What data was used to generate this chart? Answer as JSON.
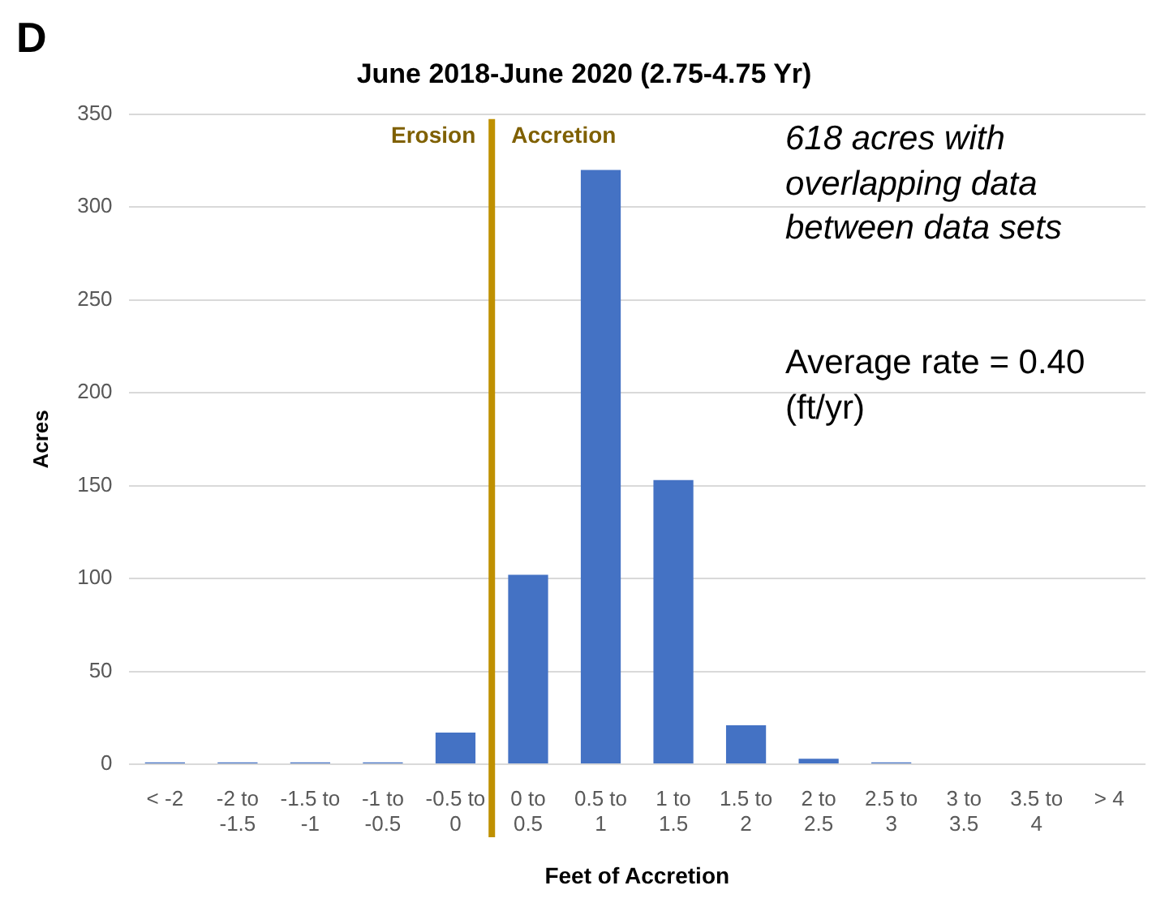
{
  "chart_data": {
    "type": "bar",
    "title": "June 2018-June 2020 (2.75-4.75 Yr)",
    "xlabel": "Feet of Accretion",
    "ylabel": "Acres",
    "categories": [
      "< -2",
      "-2 to -1.5",
      "-1.5 to -1",
      "-1 to -0.5",
      "-0.5 to 0",
      "0 to 0.5",
      "0.5 to 1",
      "1 to 1.5",
      "1.5 to 2",
      "2 to 2.5",
      "2.5 to 3",
      "3 to 3.5",
      "3.5 to 4",
      "> 4"
    ],
    "values": [
      1,
      1,
      1,
      1,
      17,
      102,
      320,
      153,
      21,
      3,
      1,
      0,
      0,
      0
    ],
    "color": "#4472c4",
    "ref_lines": [
      {
        "axis": "x",
        "value": "0 to 0.5",
        "color": "#bf9000"
      }
    ],
    "ylim": [
      0,
      350
    ],
    "yticks": [
      0,
      50,
      100,
      150,
      200,
      250,
      300,
      350
    ],
    "grid": "y",
    "legend": false,
    "annotations": [
      "D",
      "Erosion",
      "Accretion",
      "618 acres with overlapping data between data sets",
      "Average rate = 0.40 (ft/yr)"
    ]
  }
}
